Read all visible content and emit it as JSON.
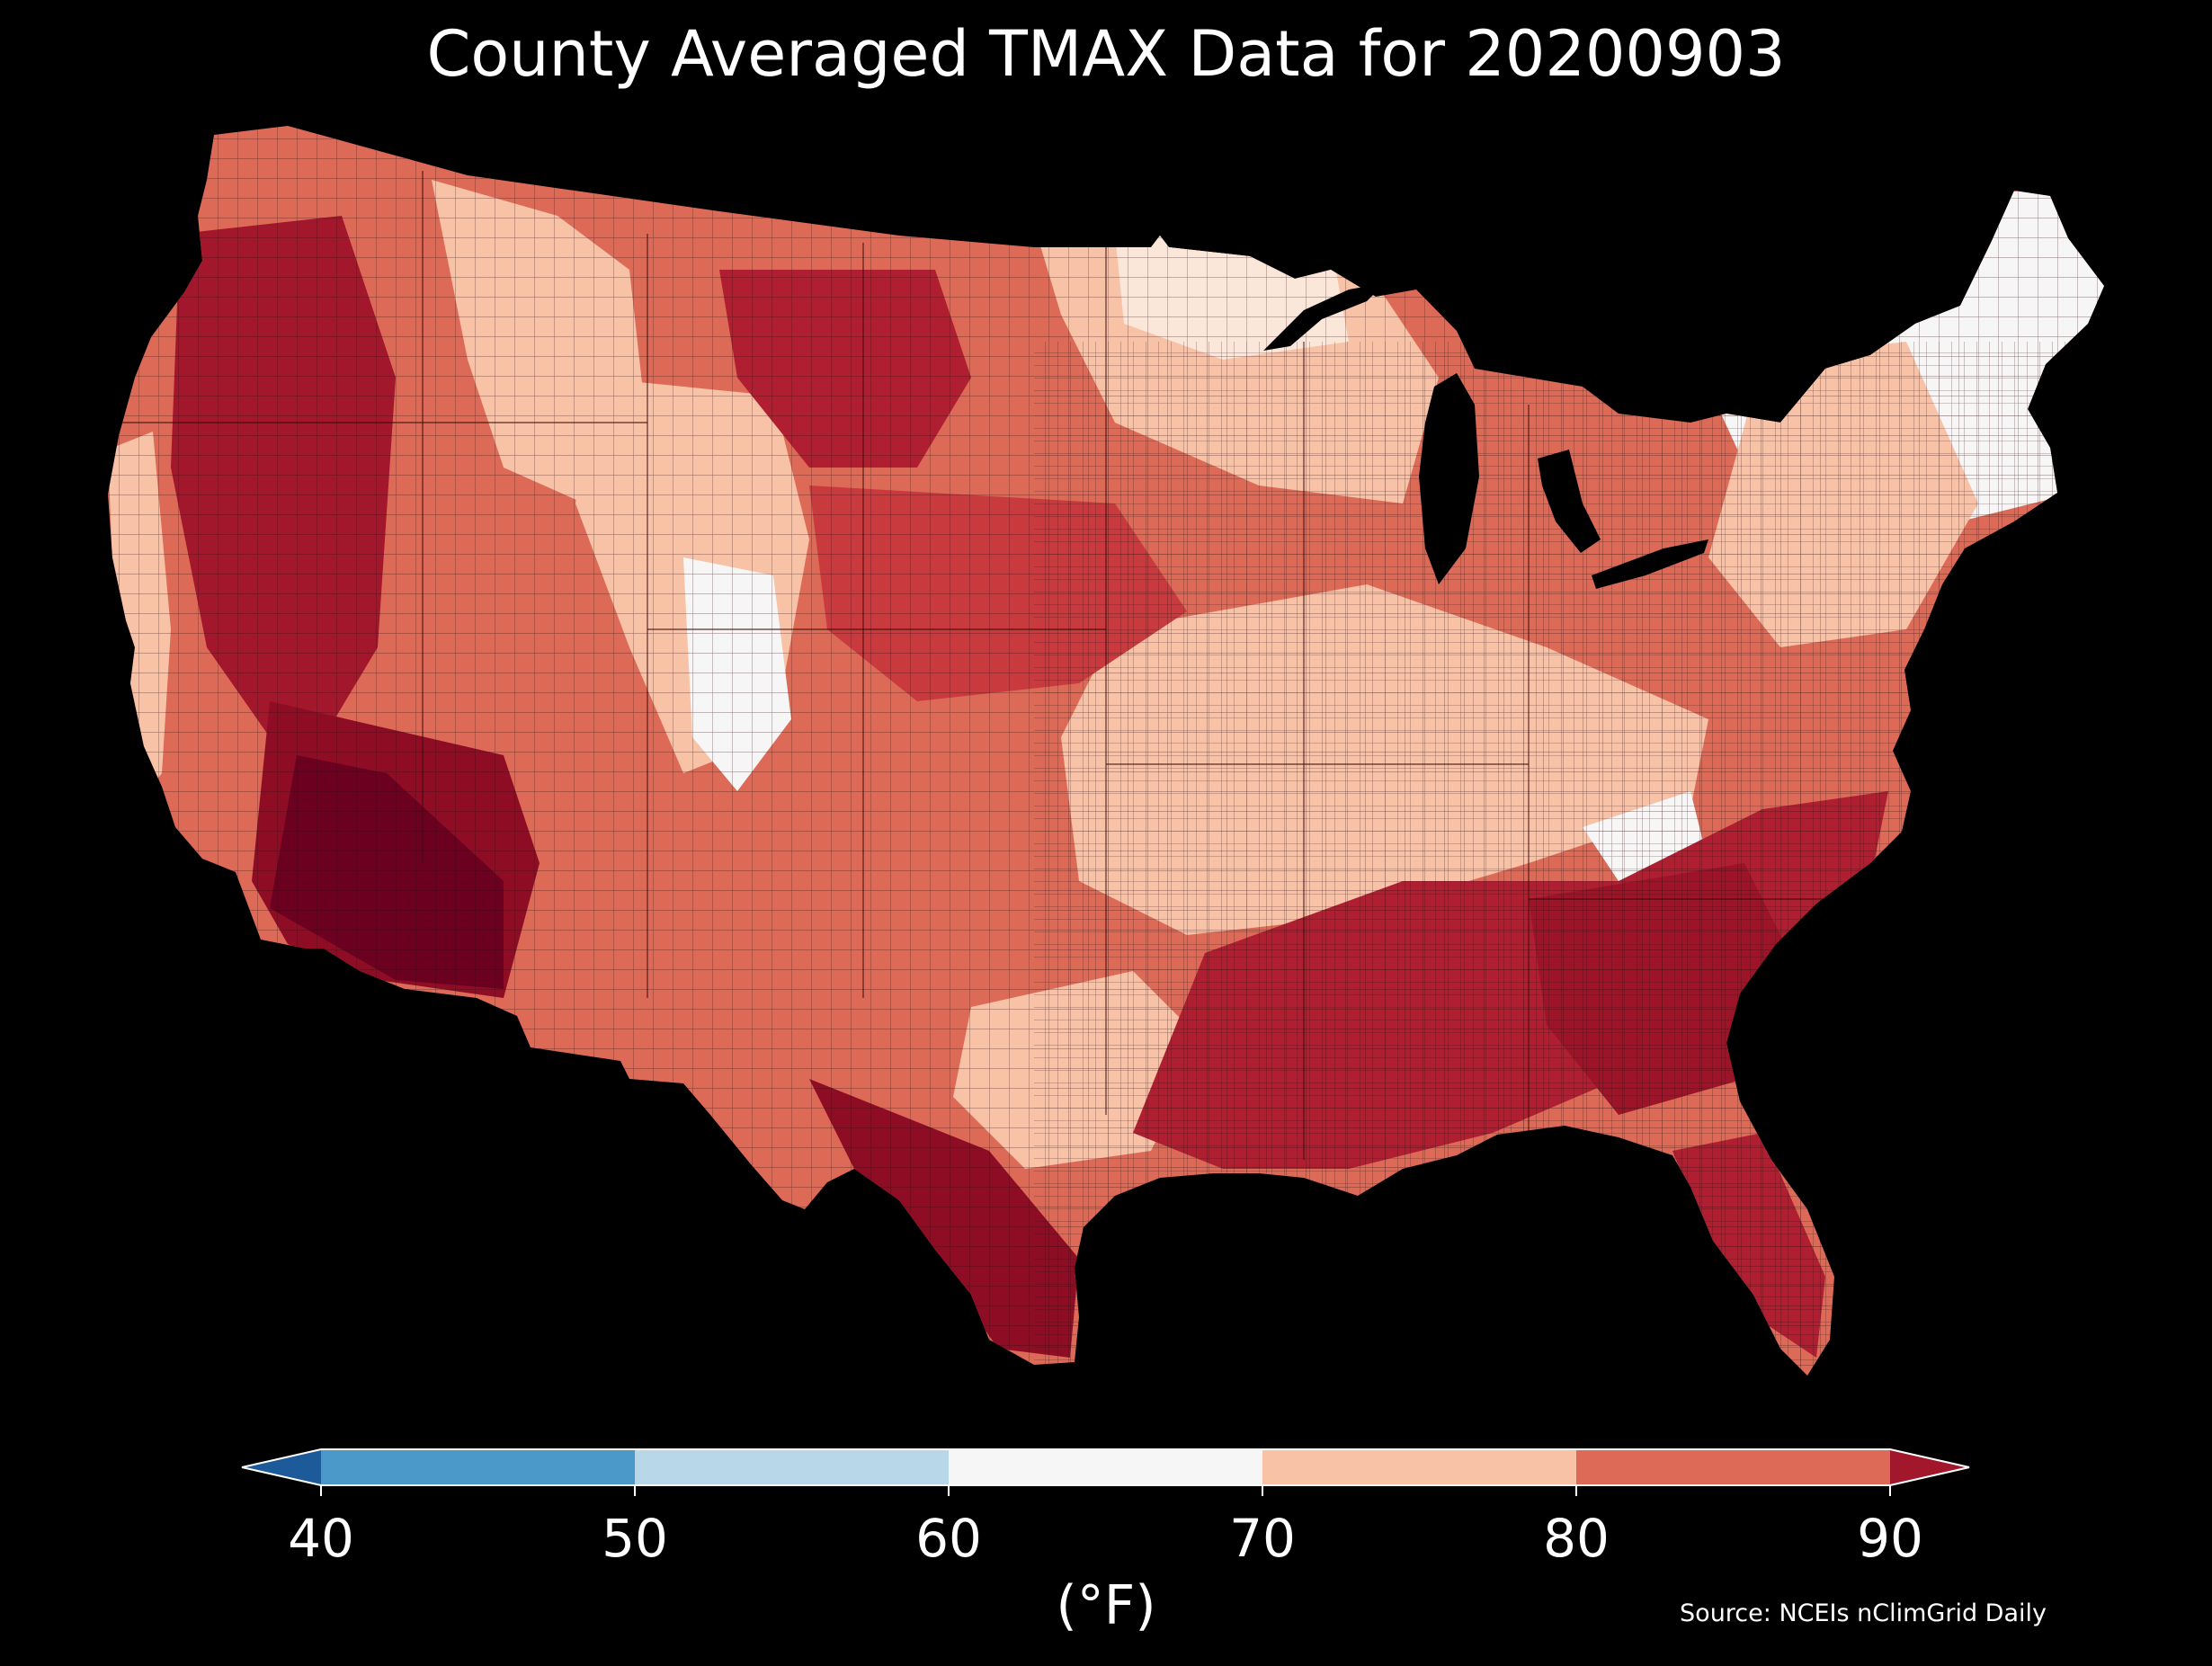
{
  "title": "County Averaged TMAX Data for 20200903",
  "colorbar": {
    "ticks": [
      "40",
      "50",
      "60",
      "70",
      "80",
      "90"
    ],
    "tick_values": [
      40,
      50,
      60,
      70,
      80,
      90
    ],
    "colors": {
      "below_40": "#1d5a9a",
      "40_50": "#4a99c9",
      "50_60": "#b8d8ea",
      "60_70": "#f6f6f6",
      "70_80": "#f8c2a6",
      "80_90": "#dd6a57",
      "above_90": "#a2172c"
    },
    "units": "(°F)",
    "extend": "both"
  },
  "source": "Source: NCEIs nClimGrid Daily",
  "map": {
    "region": "Contiguous United States",
    "variable": "TMAX",
    "background": "#000000",
    "border_color": "#2b0a0a"
  }
}
